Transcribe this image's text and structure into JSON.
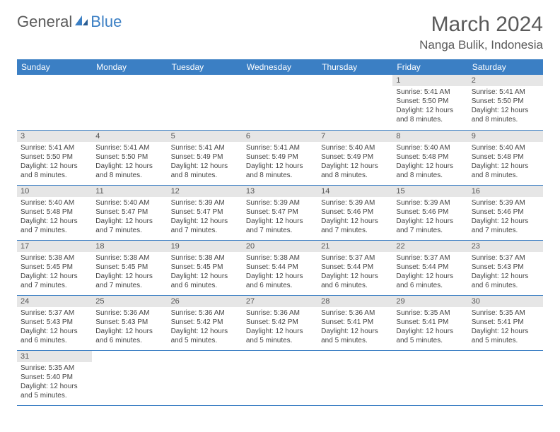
{
  "logo": {
    "word1": "General",
    "word2": "Blue"
  },
  "title": "March 2024",
  "location": "Nanga Bulik, Indonesia",
  "colors": {
    "header_bg": "#3b7fc4",
    "header_text": "#ffffff",
    "daynum_bg": "#e6e6e6",
    "row_border": "#3b7fc4",
    "text": "#444444",
    "title": "#5a5a5a"
  },
  "weekdays": [
    "Sunday",
    "Monday",
    "Tuesday",
    "Wednesday",
    "Thursday",
    "Friday",
    "Saturday"
  ],
  "grid": [
    [
      null,
      null,
      null,
      null,
      null,
      {
        "d": "1",
        "sr": "Sunrise: 5:41 AM",
        "ss": "Sunset: 5:50 PM",
        "dl": "Daylight: 12 hours and 8 minutes."
      },
      {
        "d": "2",
        "sr": "Sunrise: 5:41 AM",
        "ss": "Sunset: 5:50 PM",
        "dl": "Daylight: 12 hours and 8 minutes."
      }
    ],
    [
      {
        "d": "3",
        "sr": "Sunrise: 5:41 AM",
        "ss": "Sunset: 5:50 PM",
        "dl": "Daylight: 12 hours and 8 minutes."
      },
      {
        "d": "4",
        "sr": "Sunrise: 5:41 AM",
        "ss": "Sunset: 5:50 PM",
        "dl": "Daylight: 12 hours and 8 minutes."
      },
      {
        "d": "5",
        "sr": "Sunrise: 5:41 AM",
        "ss": "Sunset: 5:49 PM",
        "dl": "Daylight: 12 hours and 8 minutes."
      },
      {
        "d": "6",
        "sr": "Sunrise: 5:41 AM",
        "ss": "Sunset: 5:49 PM",
        "dl": "Daylight: 12 hours and 8 minutes."
      },
      {
        "d": "7",
        "sr": "Sunrise: 5:40 AM",
        "ss": "Sunset: 5:49 PM",
        "dl": "Daylight: 12 hours and 8 minutes."
      },
      {
        "d": "8",
        "sr": "Sunrise: 5:40 AM",
        "ss": "Sunset: 5:48 PM",
        "dl": "Daylight: 12 hours and 8 minutes."
      },
      {
        "d": "9",
        "sr": "Sunrise: 5:40 AM",
        "ss": "Sunset: 5:48 PM",
        "dl": "Daylight: 12 hours and 8 minutes."
      }
    ],
    [
      {
        "d": "10",
        "sr": "Sunrise: 5:40 AM",
        "ss": "Sunset: 5:48 PM",
        "dl": "Daylight: 12 hours and 7 minutes."
      },
      {
        "d": "11",
        "sr": "Sunrise: 5:40 AM",
        "ss": "Sunset: 5:47 PM",
        "dl": "Daylight: 12 hours and 7 minutes."
      },
      {
        "d": "12",
        "sr": "Sunrise: 5:39 AM",
        "ss": "Sunset: 5:47 PM",
        "dl": "Daylight: 12 hours and 7 minutes."
      },
      {
        "d": "13",
        "sr": "Sunrise: 5:39 AM",
        "ss": "Sunset: 5:47 PM",
        "dl": "Daylight: 12 hours and 7 minutes."
      },
      {
        "d": "14",
        "sr": "Sunrise: 5:39 AM",
        "ss": "Sunset: 5:46 PM",
        "dl": "Daylight: 12 hours and 7 minutes."
      },
      {
        "d": "15",
        "sr": "Sunrise: 5:39 AM",
        "ss": "Sunset: 5:46 PM",
        "dl": "Daylight: 12 hours and 7 minutes."
      },
      {
        "d": "16",
        "sr": "Sunrise: 5:39 AM",
        "ss": "Sunset: 5:46 PM",
        "dl": "Daylight: 12 hours and 7 minutes."
      }
    ],
    [
      {
        "d": "17",
        "sr": "Sunrise: 5:38 AM",
        "ss": "Sunset: 5:45 PM",
        "dl": "Daylight: 12 hours and 7 minutes."
      },
      {
        "d": "18",
        "sr": "Sunrise: 5:38 AM",
        "ss": "Sunset: 5:45 PM",
        "dl": "Daylight: 12 hours and 7 minutes."
      },
      {
        "d": "19",
        "sr": "Sunrise: 5:38 AM",
        "ss": "Sunset: 5:45 PM",
        "dl": "Daylight: 12 hours and 6 minutes."
      },
      {
        "d": "20",
        "sr": "Sunrise: 5:38 AM",
        "ss": "Sunset: 5:44 PM",
        "dl": "Daylight: 12 hours and 6 minutes."
      },
      {
        "d": "21",
        "sr": "Sunrise: 5:37 AM",
        "ss": "Sunset: 5:44 PM",
        "dl": "Daylight: 12 hours and 6 minutes."
      },
      {
        "d": "22",
        "sr": "Sunrise: 5:37 AM",
        "ss": "Sunset: 5:44 PM",
        "dl": "Daylight: 12 hours and 6 minutes."
      },
      {
        "d": "23",
        "sr": "Sunrise: 5:37 AM",
        "ss": "Sunset: 5:43 PM",
        "dl": "Daylight: 12 hours and 6 minutes."
      }
    ],
    [
      {
        "d": "24",
        "sr": "Sunrise: 5:37 AM",
        "ss": "Sunset: 5:43 PM",
        "dl": "Daylight: 12 hours and 6 minutes."
      },
      {
        "d": "25",
        "sr": "Sunrise: 5:36 AM",
        "ss": "Sunset: 5:43 PM",
        "dl": "Daylight: 12 hours and 6 minutes."
      },
      {
        "d": "26",
        "sr": "Sunrise: 5:36 AM",
        "ss": "Sunset: 5:42 PM",
        "dl": "Daylight: 12 hours and 5 minutes."
      },
      {
        "d": "27",
        "sr": "Sunrise: 5:36 AM",
        "ss": "Sunset: 5:42 PM",
        "dl": "Daylight: 12 hours and 5 minutes."
      },
      {
        "d": "28",
        "sr": "Sunrise: 5:36 AM",
        "ss": "Sunset: 5:41 PM",
        "dl": "Daylight: 12 hours and 5 minutes."
      },
      {
        "d": "29",
        "sr": "Sunrise: 5:35 AM",
        "ss": "Sunset: 5:41 PM",
        "dl": "Daylight: 12 hours and 5 minutes."
      },
      {
        "d": "30",
        "sr": "Sunrise: 5:35 AM",
        "ss": "Sunset: 5:41 PM",
        "dl": "Daylight: 12 hours and 5 minutes."
      }
    ],
    [
      {
        "d": "31",
        "sr": "Sunrise: 5:35 AM",
        "ss": "Sunset: 5:40 PM",
        "dl": "Daylight: 12 hours and 5 minutes."
      },
      null,
      null,
      null,
      null,
      null,
      null
    ]
  ]
}
